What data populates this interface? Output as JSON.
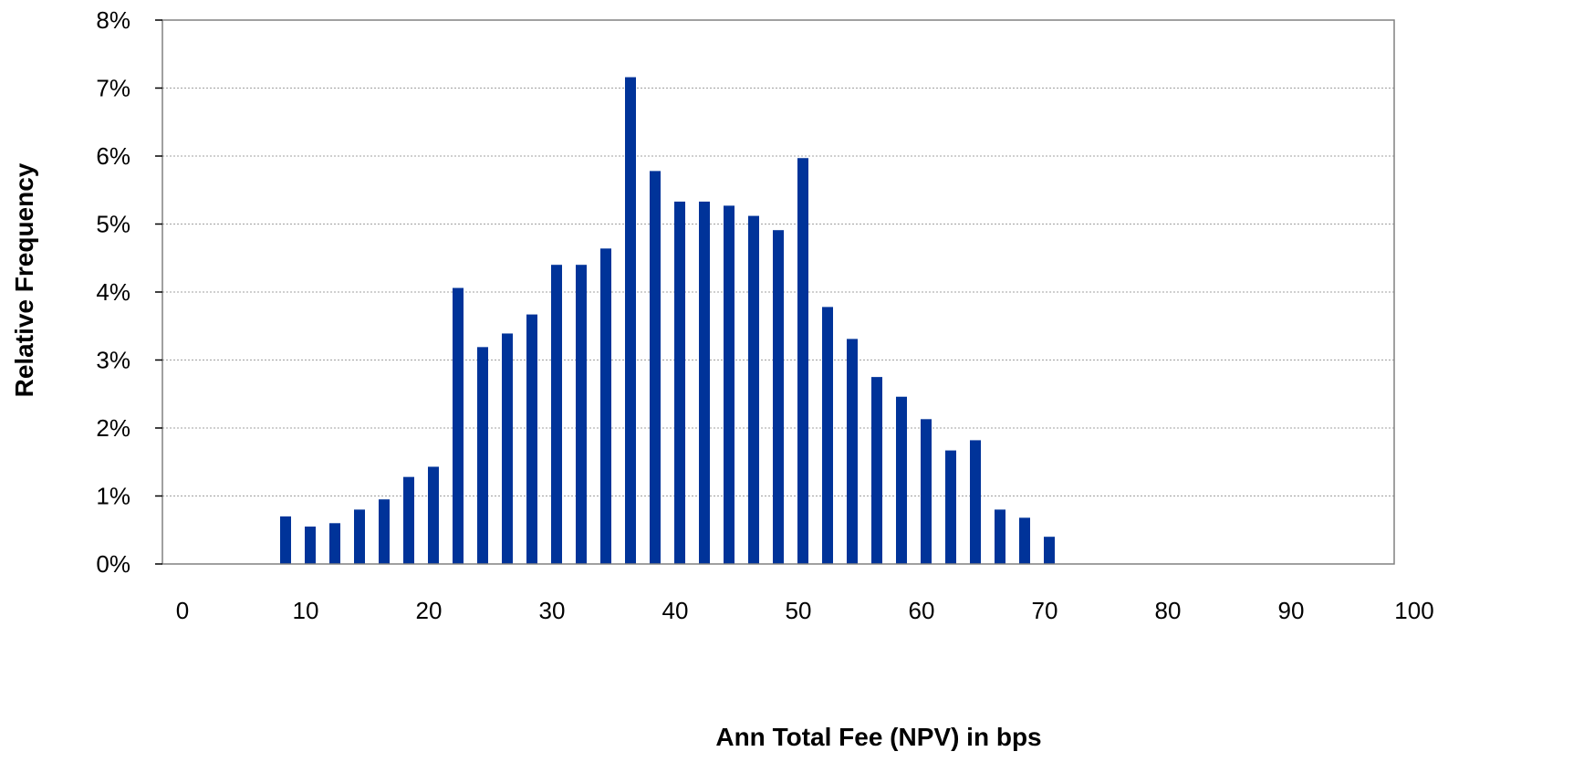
{
  "chart_data": {
    "type": "bar",
    "xlabel": "Ann Total Fee (NPV) in bps",
    "ylabel": "Relative Frequency",
    "xlim": [
      0,
      100
    ],
    "ylim": [
      0,
      8
    ],
    "x_ticks": [
      0,
      10,
      20,
      30,
      40,
      50,
      60,
      70,
      80,
      90,
      100
    ],
    "y_ticks": [
      0,
      1,
      2,
      3,
      4,
      5,
      6,
      7,
      8
    ],
    "x_tick_labels": [
      "0",
      "10",
      "20",
      "30",
      "40",
      "50",
      "60",
      "70",
      "80",
      "90",
      "100"
    ],
    "y_tick_labels": [
      "0%",
      "1%",
      "2%",
      "3%",
      "4%",
      "5%",
      "6%",
      "7%",
      "8%"
    ],
    "y_unit": "%",
    "grid": "horizontal-dotted",
    "legend": "none",
    "x": [
      10,
      12,
      14,
      16,
      18,
      20,
      22,
      24,
      26,
      28,
      30,
      32,
      34,
      36,
      38,
      40,
      42,
      44,
      46,
      48,
      50,
      52,
      54,
      56,
      58,
      60,
      62,
      64,
      66,
      68,
      70,
      72
    ],
    "values": [
      0.7,
      0.55,
      0.6,
      0.8,
      0.95,
      1.28,
      1.43,
      4.06,
      3.19,
      3.39,
      3.67,
      4.4,
      4.4,
      4.64,
      7.16,
      5.78,
      5.33,
      5.33,
      5.27,
      5.12,
      4.91,
      5.97,
      3.78,
      3.31,
      2.75,
      2.46,
      2.13,
      1.67,
      1.82,
      0.8,
      0.68,
      0.4
    ],
    "bar_color": "#003399",
    "axis_color": "#808080",
    "grid_color": "#a0a0a0"
  }
}
